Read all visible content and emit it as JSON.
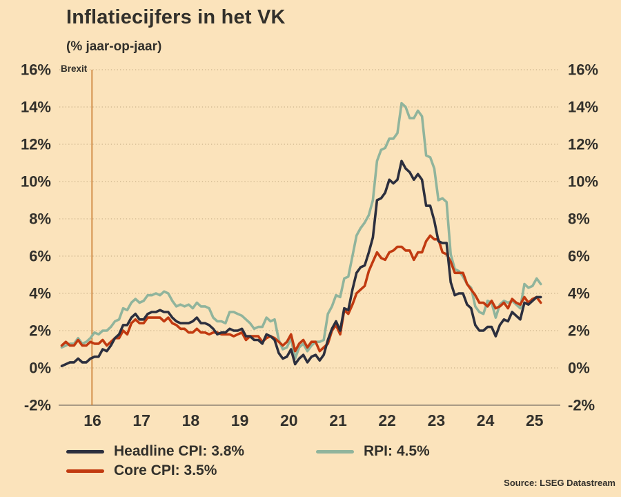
{
  "title": "Inflatiecijfers in het VK",
  "subtitle": "(% jaar-op-jaar)",
  "source": "Source: LSEG Datastream",
  "annotation": {
    "label": "Brexit",
    "time": 2016.49
  },
  "colors": {
    "background": "#fbe3bb",
    "text": "#32302b",
    "headline_cpi": "#2c2f3e",
    "core_cpi": "#c13a10",
    "rpi": "#90b49c",
    "brexit": "#c87a2e",
    "gridline": "#cbb38b",
    "axis": "#8c8272"
  },
  "chart_data": {
    "type": "line",
    "title": "Inflatiecijfers in het VK",
    "subtitle": "(% jaar-op-jaar)",
    "frequency": "monthly",
    "start": "2015-11",
    "grid": "horizontal-dotted",
    "legend_position": "bottom",
    "ylim": [
      -2,
      16
    ],
    "y_ticks": [
      -2,
      0,
      2,
      4,
      6,
      8,
      10,
      12,
      14,
      16
    ],
    "y_tick_labels": [
      "-2%",
      "0%",
      "2%",
      "4%",
      "6%",
      "8%",
      "10%",
      "12%",
      "14%",
      "16%"
    ],
    "x_tick_labels": [
      "16",
      "17",
      "18",
      "19",
      "20",
      "21",
      "22",
      "23",
      "24",
      "25"
    ],
    "x_tick_positions": [
      2016.5,
      2017.5,
      2018.5,
      2019.5,
      2020.5,
      2021.5,
      2022.5,
      2023.5,
      2024.5,
      2025.5
    ],
    "series": [
      {
        "name": "Headline CPI",
        "legend_label": "Headline CPI: 3.8%",
        "latest": 3.8,
        "color_key": "headline_cpi",
        "values": [
          0.1,
          0.2,
          0.3,
          0.3,
          0.5,
          0.3,
          0.3,
          0.5,
          0.6,
          0.6,
          1.0,
          0.9,
          1.2,
          1.6,
          1.8,
          2.3,
          2.3,
          2.7,
          2.9,
          2.6,
          2.6,
          2.9,
          3.0,
          3.0,
          3.1,
          3.0,
          3.0,
          2.7,
          2.5,
          2.4,
          2.4,
          2.4,
          2.5,
          2.7,
          2.4,
          2.4,
          2.3,
          2.1,
          1.8,
          1.9,
          1.9,
          2.1,
          2.0,
          2.0,
          2.1,
          1.7,
          1.7,
          1.5,
          1.5,
          1.3,
          1.8,
          1.7,
          1.5,
          0.8,
          0.5,
          0.6,
          1.0,
          0.2,
          0.5,
          0.7,
          0.3,
          0.6,
          0.7,
          0.4,
          0.7,
          1.5,
          2.1,
          2.5,
          2.0,
          3.2,
          3.1,
          4.2,
          5.1,
          5.4,
          5.5,
          6.2,
          7.0,
          9.0,
          9.1,
          9.4,
          10.1,
          9.9,
          10.1,
          11.1,
          10.7,
          10.5,
          10.1,
          10.4,
          10.1,
          8.7,
          8.7,
          7.9,
          6.8,
          6.7,
          6.7,
          4.6,
          3.9,
          4.0,
          4.0,
          3.4,
          3.2,
          2.3,
          2.0,
          2.0,
          2.2,
          2.2,
          1.7,
          2.3,
          2.6,
          2.5,
          3.0,
          2.8,
          2.6,
          3.5,
          3.4,
          3.6,
          3.8,
          3.8
        ]
      },
      {
        "name": "Core CPI",
        "legend_label": "Core CPI: 3.5%",
        "latest": 3.5,
        "color_key": "core_cpi",
        "values": [
          1.2,
          1.4,
          1.2,
          1.2,
          1.5,
          1.2,
          1.2,
          1.4,
          1.3,
          1.3,
          1.5,
          1.2,
          1.4,
          1.6,
          1.6,
          2.0,
          1.8,
          2.4,
          2.6,
          2.4,
          2.4,
          2.7,
          2.7,
          2.7,
          2.7,
          2.5,
          2.7,
          2.4,
          2.3,
          2.1,
          2.1,
          1.9,
          1.9,
          2.1,
          1.9,
          1.9,
          1.8,
          1.9,
          1.9,
          1.8,
          1.8,
          1.8,
          1.7,
          1.8,
          1.9,
          1.5,
          1.7,
          1.7,
          1.7,
          1.4,
          1.6,
          1.7,
          1.6,
          1.4,
          1.2,
          1.4,
          1.8,
          0.9,
          1.3,
          1.5,
          1.1,
          1.4,
          1.4,
          0.9,
          1.1,
          1.3,
          2.0,
          2.3,
          1.8,
          3.1,
          2.9,
          3.4,
          4.0,
          4.2,
          4.4,
          5.2,
          5.7,
          6.2,
          5.9,
          5.8,
          6.2,
          6.3,
          6.5,
          6.5,
          6.3,
          6.3,
          5.8,
          6.2,
          6.2,
          6.8,
          7.1,
          6.9,
          6.9,
          6.2,
          6.1,
          5.7,
          5.1,
          5.1,
          5.1,
          4.5,
          4.2,
          3.9,
          3.5,
          3.5,
          3.3,
          3.6,
          3.2,
          3.3,
          3.5,
          3.2,
          3.7,
          3.5,
          3.4,
          3.8,
          3.5,
          3.7,
          3.8,
          3.5
        ]
      },
      {
        "name": "RPI",
        "legend_label": "RPI: 4.5%",
        "latest": 4.5,
        "color_key": "rpi",
        "values": [
          1.1,
          1.2,
          1.3,
          1.3,
          1.6,
          1.3,
          1.4,
          1.6,
          1.9,
          1.8,
          2.0,
          2.0,
          2.2,
          2.5,
          2.6,
          3.2,
          3.1,
          3.5,
          3.7,
          3.5,
          3.6,
          3.9,
          3.9,
          4.0,
          3.9,
          4.1,
          4.0,
          3.6,
          3.3,
          3.4,
          3.3,
          3.4,
          3.2,
          3.5,
          3.3,
          3.3,
          3.2,
          2.7,
          2.5,
          2.5,
          2.4,
          3.0,
          3.0,
          2.9,
          2.8,
          2.6,
          2.4,
          2.1,
          2.2,
          2.2,
          2.7,
          2.5,
          2.6,
          1.5,
          1.0,
          1.1,
          1.6,
          0.5,
          1.1,
          1.3,
          0.9,
          1.2,
          1.4,
          1.4,
          1.5,
          2.9,
          3.3,
          3.9,
          3.8,
          4.8,
          4.9,
          6.0,
          7.1,
          7.5,
          7.8,
          8.2,
          9.0,
          11.1,
          11.7,
          11.8,
          12.3,
          12.3,
          12.6,
          14.2,
          14.0,
          13.4,
          13.4,
          13.8,
          13.5,
          11.4,
          11.3,
          10.7,
          9.0,
          9.1,
          8.9,
          6.1,
          5.3,
          5.2,
          4.9,
          4.5,
          4.3,
          3.3,
          3.0,
          2.9,
          3.6,
          3.5,
          2.7,
          3.4,
          3.6,
          3.5,
          3.6,
          3.4,
          3.2,
          4.5,
          4.3,
          4.4,
          4.8,
          4.5
        ]
      }
    ]
  }
}
